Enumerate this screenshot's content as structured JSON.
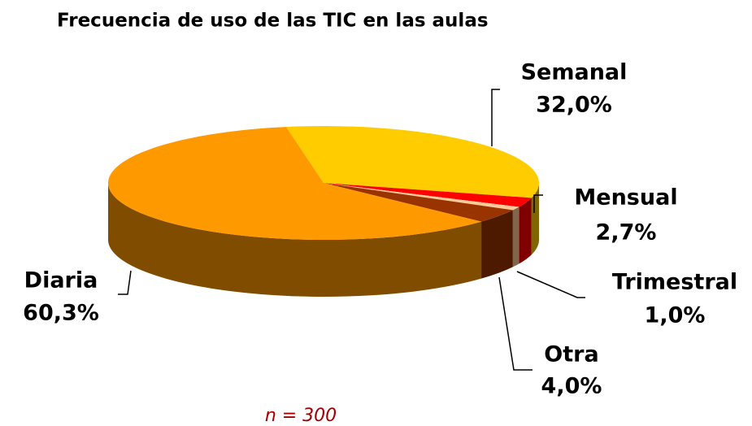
{
  "chart_data": {
    "type": "pie",
    "title": "Frecuencia de uso de las TIC en las aulas",
    "categories": [
      "Semanal",
      "Mensual",
      "Trimestral",
      "Otra",
      "Diaria"
    ],
    "values": [
      32.0,
      2.7,
      1.0,
      4.0,
      60.3
    ],
    "value_labels": [
      "32,0%",
      "2,7%",
      "1,0%",
      "4,0%",
      "60,3%"
    ],
    "colors": [
      "#ffcc00",
      "#ff0000",
      "#ffcc99",
      "#993300",
      "#ff9900"
    ],
    "annotation": "n = 300"
  }
}
